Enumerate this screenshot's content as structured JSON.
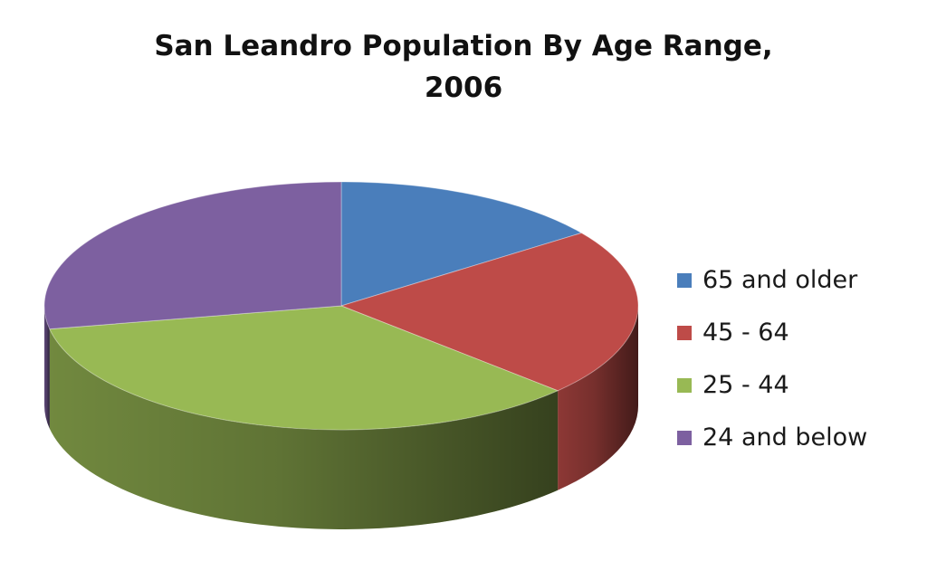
{
  "chart_data": {
    "type": "pie",
    "title_lines": [
      "San Leandro Population By Age Range,",
      "2006"
    ],
    "slices": [
      {
        "label": "65 and older",
        "value": 15,
        "color": "#4a7ebb"
      },
      {
        "label": "45 - 64",
        "value": 22,
        "color": "#be4b48"
      },
      {
        "label": "25 - 44",
        "value": 35,
        "color": "#98b954"
      },
      {
        "label": "24 and below",
        "value": 28,
        "color": "#7d60a0"
      }
    ],
    "legend_position": "right",
    "style": "3d"
  }
}
